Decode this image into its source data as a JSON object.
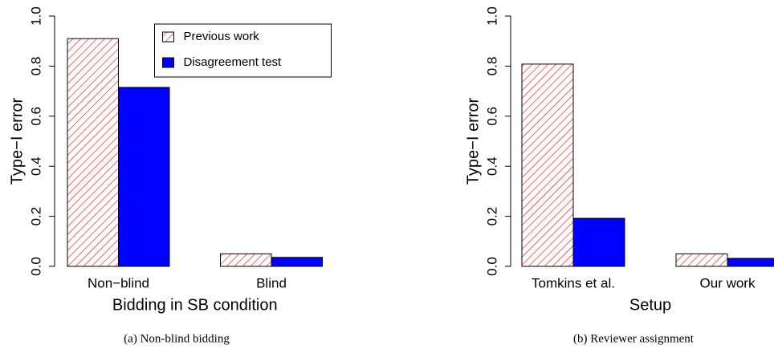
{
  "chart_data": [
    {
      "type": "bar",
      "caption": "(a) Non-blind bidding",
      "ylabel": "Type−I error",
      "xlabel": "Bidding in SB condition",
      "categories": [
        "Non−blind",
        "Blind"
      ],
      "series": [
        {
          "name": "Previous work",
          "color": "#ff0000",
          "pattern": "hatch",
          "values": [
            0.91,
            0.05
          ]
        },
        {
          "name": "Disagreement test",
          "color": "#0000ff",
          "values": [
            0.715,
            0.036
          ]
        }
      ],
      "ylim": [
        0,
        1
      ],
      "yticks": [
        {
          "value": 0,
          "label": "0.0"
        },
        0.2,
        0.4,
        0.6,
        0.8,
        {
          "value": 1,
          "label": "1.0"
        }
      ],
      "legend": "top right"
    },
    {
      "type": "bar",
      "caption": "(b) Reviewer assignment",
      "ylabel": "Type−I error",
      "xlabel": "Setup",
      "categories": [
        "Tomkins et al.",
        "Our work"
      ],
      "series": [
        {
          "color": "#ff0000",
          "pattern": "hatch",
          "values": [
            0.808,
            0.05
          ]
        },
        {
          "color": "#0000ff",
          "values": [
            0.192,
            0.032
          ]
        }
      ],
      "ylim": [
        0,
        1
      ],
      "yticks": [
        {
          "value": 0,
          "label": "0.0"
        },
        0.2,
        0.4,
        0.6,
        0.8,
        {
          "value": 1,
          "label": "1.0"
        }
      ]
    }
  ]
}
